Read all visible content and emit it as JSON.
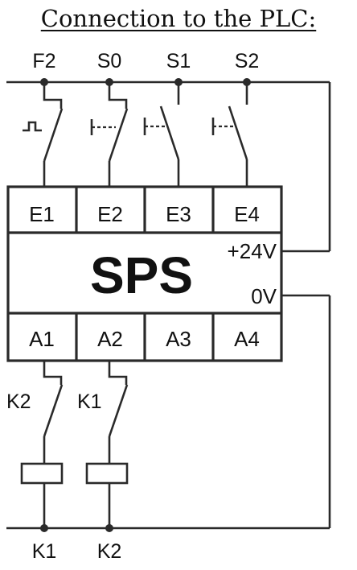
{
  "title": "Connection to the PLC:",
  "input_labels": [
    "F2",
    "S0",
    "S1",
    "S2"
  ],
  "plc": {
    "name": "SPS",
    "inputs": [
      "E1",
      "E2",
      "E3",
      "E4"
    ],
    "outputs": [
      "A1",
      "A2",
      "A3",
      "A4"
    ],
    "supply_positive": "+24V",
    "supply_zero": "0V"
  },
  "interlock_contacts": [
    "K2",
    "K1"
  ],
  "coil_labels": [
    "K1",
    "K2"
  ]
}
